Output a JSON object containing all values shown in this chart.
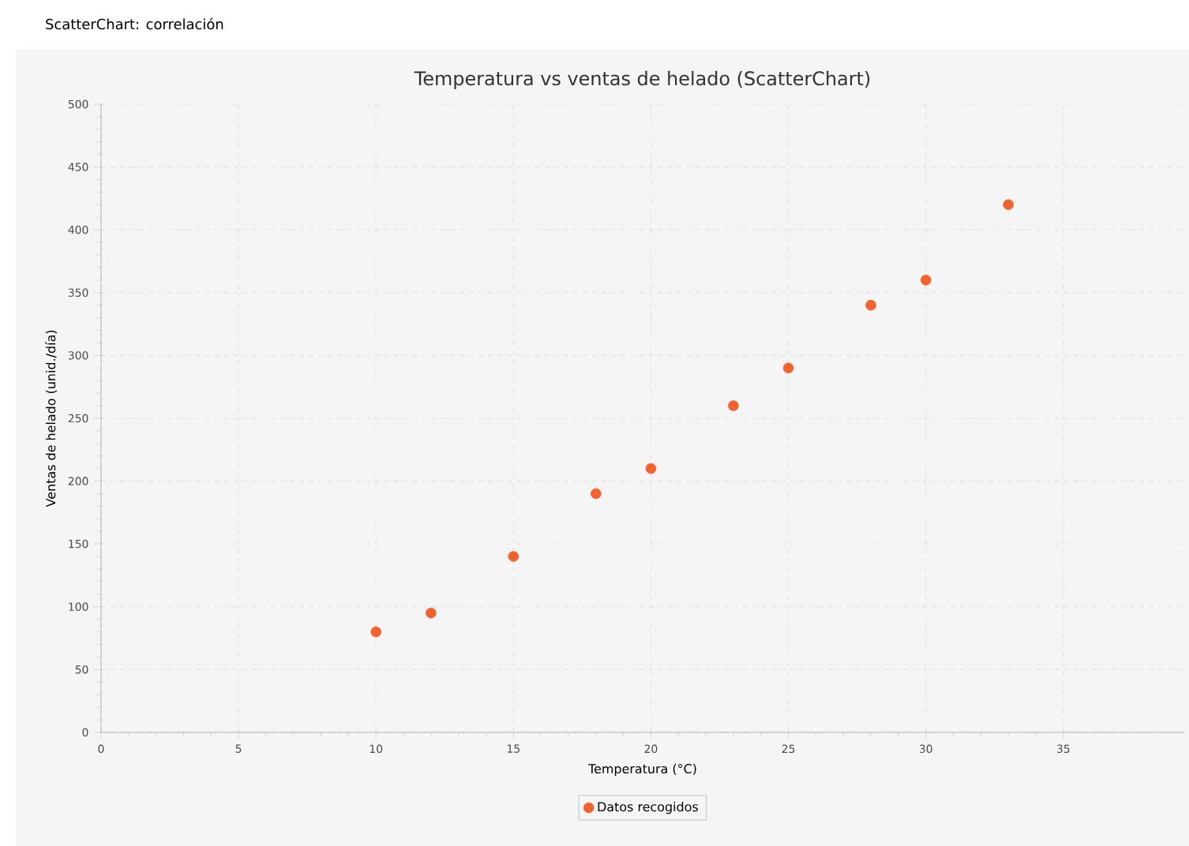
{
  "chart_data": {
    "type": "scatter",
    "title": "Temperatura vs ventas de helado (ScatterChart)",
    "xlabel": "Temperatura (°C)",
    "ylabel": "Ventas de helado (unid./día)",
    "annotations": [
      "ScatterChart: correlación"
    ],
    "x": [
      10,
      12,
      15,
      18,
      20,
      23,
      25,
      28,
      30,
      33
    ],
    "series": [
      {
        "name": "Datos recogidos",
        "color": "#f3622d",
        "values": [
          80,
          95,
          140,
          190,
          210,
          260,
          290,
          340,
          360,
          420
        ]
      }
    ],
    "xlim": [
      0,
      39.4
    ],
    "xticks": [
      0,
      5,
      10,
      15,
      20,
      25,
      30,
      35
    ],
    "ylim": [
      0,
      500
    ],
    "yticks": [
      0,
      50,
      100,
      150,
      200,
      250,
      300,
      350,
      400,
      450,
      500
    ],
    "grid": true,
    "legend": "bottom"
  }
}
